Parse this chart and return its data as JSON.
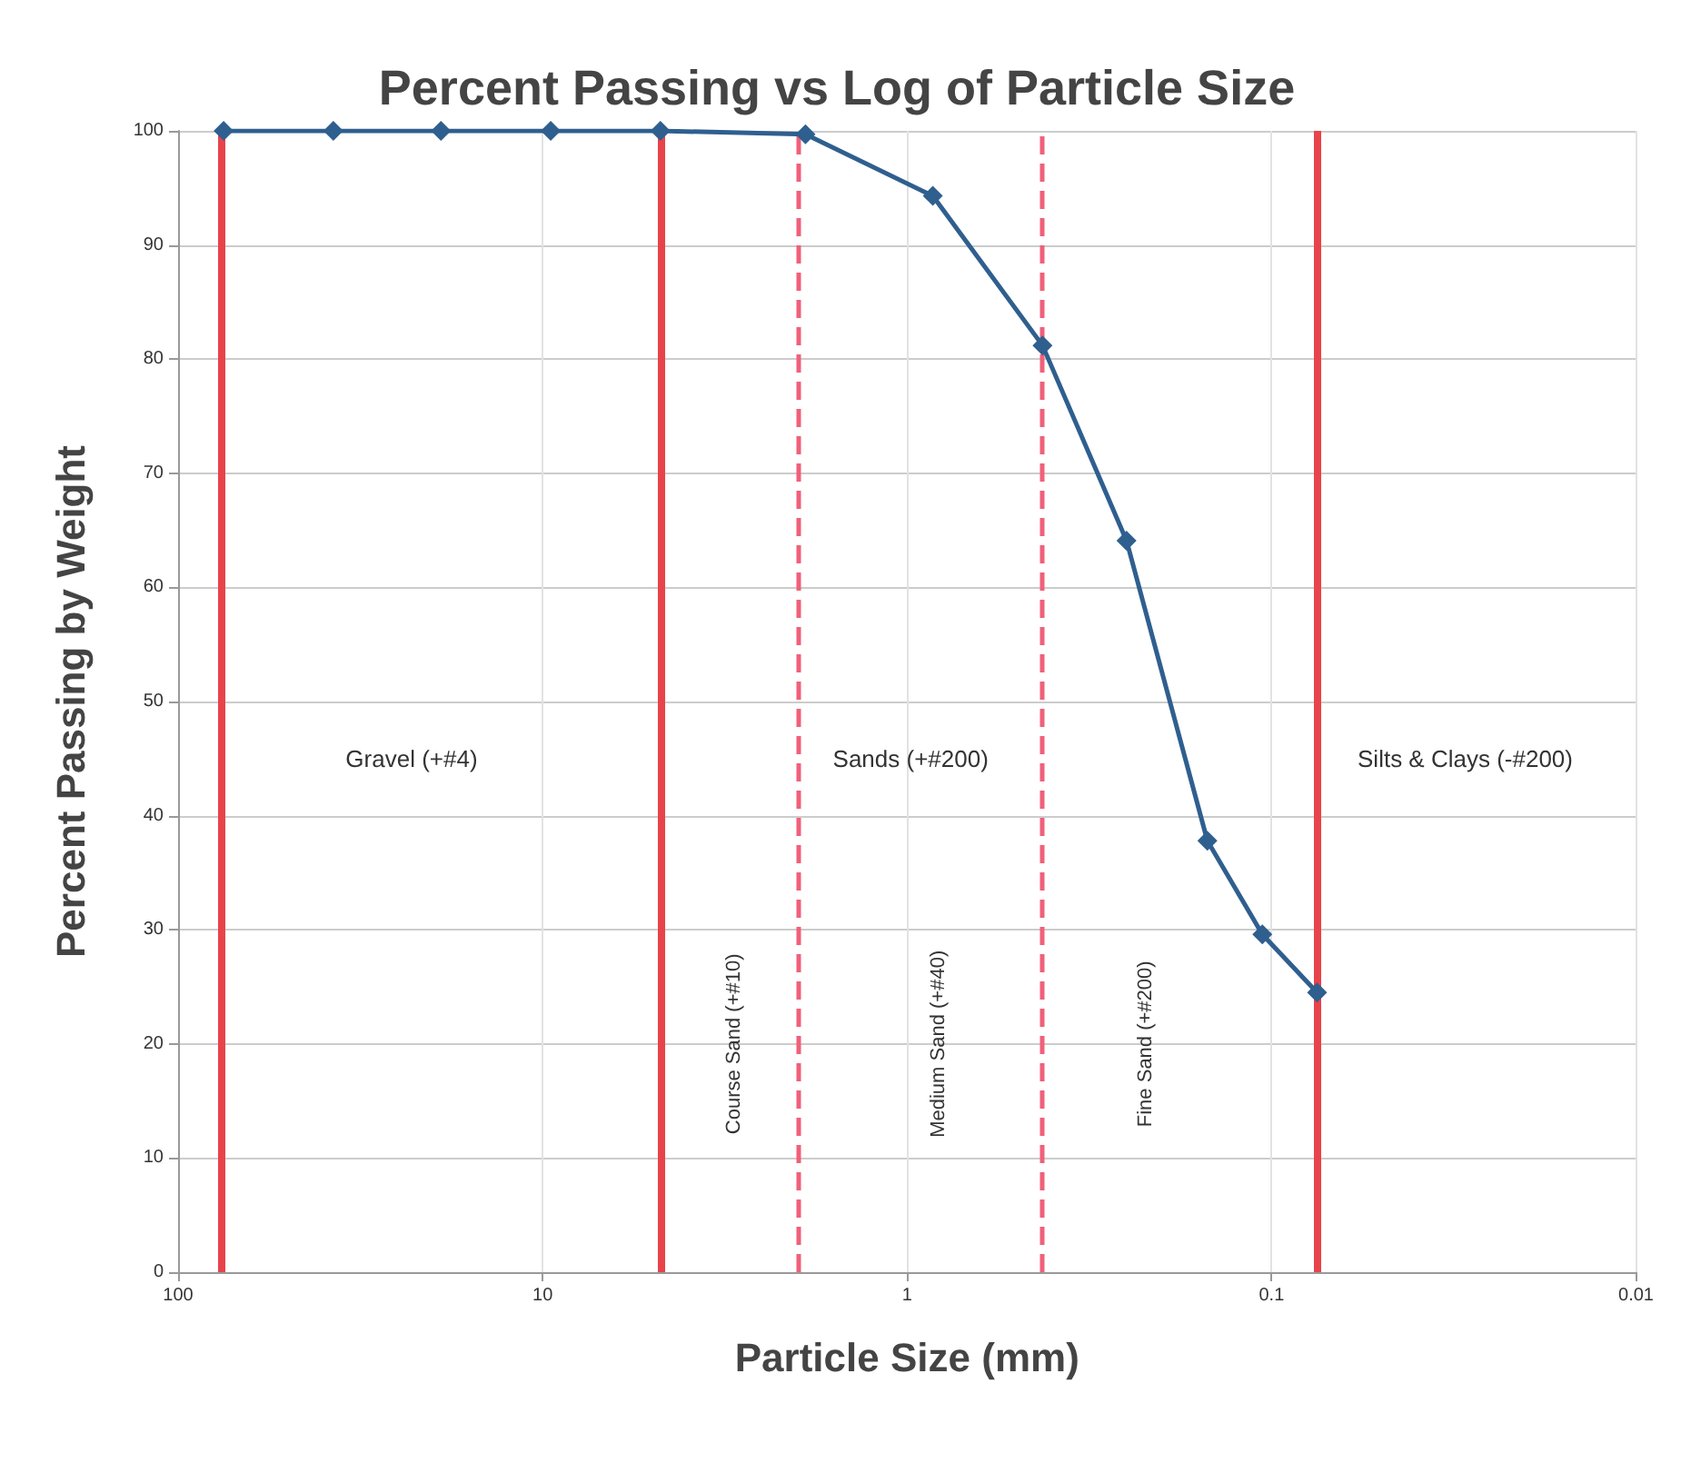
{
  "chart_data": {
    "type": "line",
    "title": "Percent Passing vs Log of Particle Size",
    "xlabel": "Particle Size (mm)",
    "ylabel": "Percent Passing by Weight",
    "x": [
      75,
      37.5,
      19,
      9.5,
      4.75,
      1.9,
      0.85,
      0.425,
      0.25,
      0.15,
      0.106,
      0.075
    ],
    "series": [
      {
        "color": "#2f5f8f",
        "values": [
          100,
          100,
          100,
          100,
          100,
          99.7,
          94.3,
          81.2,
          64.1,
          37.8,
          29.6,
          24.5
        ]
      }
    ],
    "marker": "diamond",
    "line_style": "solid",
    "log": "x",
    "grid": true,
    "xlim": [
      100,
      0.01
    ],
    "xticks": [
      100,
      10,
      1,
      0.1,
      0.01
    ],
    "ylim": [
      0,
      100
    ],
    "yticks": [
      0,
      10,
      20,
      30,
      40,
      50,
      60,
      70,
      80,
      90,
      100
    ],
    "ref_lines": [
      {
        "axis": "x",
        "value": 76.2,
        "color": "#e8434a",
        "line_style": "solid"
      },
      {
        "axis": "x",
        "value": 4.75,
        "color": "#e8434a",
        "line_style": "solid"
      },
      {
        "axis": "x",
        "value": 0.075,
        "color": "#e8434a",
        "line_style": "solid"
      },
      {
        "axis": "x",
        "value": 2.0,
        "color": "#f0607a",
        "line_style": "dashed"
      },
      {
        "axis": "x",
        "value": 0.425,
        "color": "#f0607a",
        "line_style": "dashed"
      }
    ],
    "annotations": [
      "Gravel (+#4)",
      "Sands (+#200)",
      "Silts & Clays (-#200)",
      "Course Sand (+#10)",
      "Medium Sand (+#40)",
      "Fine Sand (+#200)"
    ]
  }
}
